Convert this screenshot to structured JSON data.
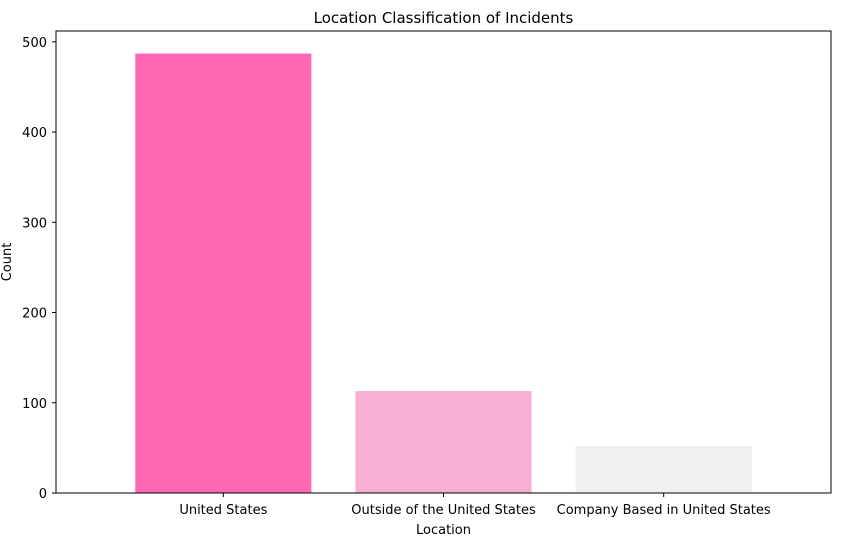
{
  "chart_data": {
    "type": "bar",
    "title": "Location Classification of Incidents",
    "xlabel": "Location",
    "ylabel": "Count",
    "categories": [
      "United States",
      "Outside of the United States",
      "Company Based in United States"
    ],
    "values": [
      487,
      113,
      52
    ],
    "colors": [
      "#ff69b4",
      "#f8afd3",
      "#f1eff0"
    ],
    "ylim": [
      0,
      512
    ],
    "yticks": [
      0,
      100,
      200,
      300,
      400,
      500
    ],
    "grid": false,
    "legend": false
  }
}
